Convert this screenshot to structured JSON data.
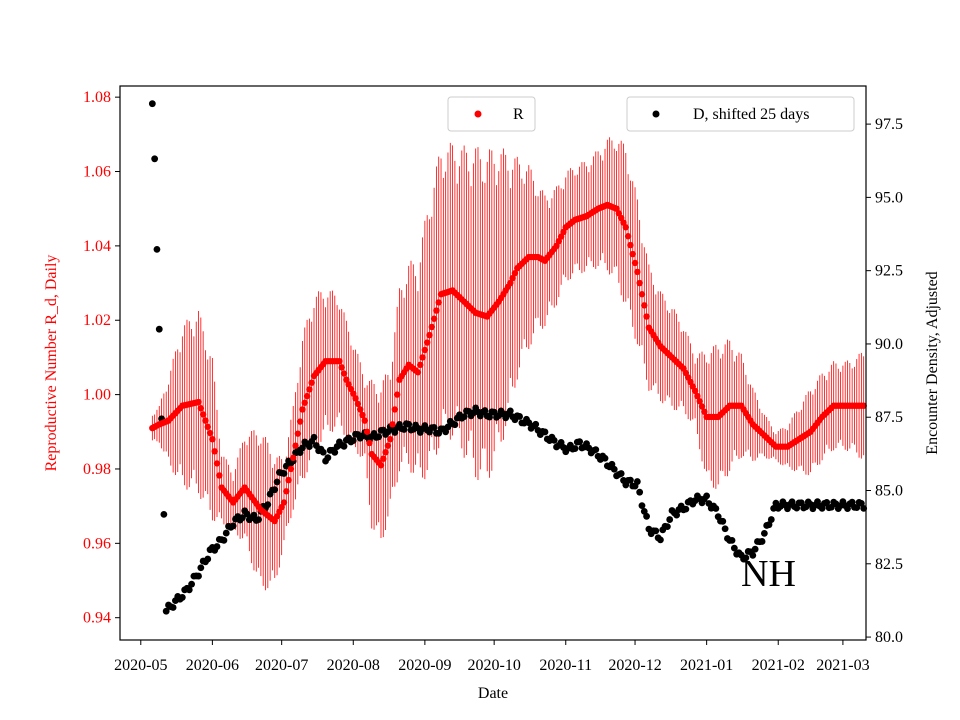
{
  "chart_data": {
    "type": "scatter",
    "title": "",
    "xlabel": "Date",
    "ylabel_left": "Reproductive Number R_d, Daily",
    "ylabel_right": "Encounter Density, Adjusted",
    "annotation": "NH",
    "x_ticks": [
      "2020-05",
      "2020-06",
      "2020-07",
      "2020-08",
      "2020-09",
      "2020-10",
      "2020-11",
      "2020-12",
      "2021-01",
      "2021-02",
      "2021-03"
    ],
    "x_range_days": [
      -9,
      314
    ],
    "ylim_left": [
      0.934,
      1.083
    ],
    "ylim_right": [
      79.9,
      98.8
    ],
    "y_ticks_left": [
      "0.94",
      "0.96",
      "0.98",
      "1.00",
      "1.02",
      "1.04",
      "1.06",
      "1.08"
    ],
    "y_ticks_right": [
      "80.0",
      "82.5",
      "85.0",
      "87.5",
      "90.0",
      "92.5",
      "95.0",
      "97.5"
    ],
    "left_color": "#ff0000",
    "right_color": "#000000",
    "legend_left": "R",
    "legend_right": "D, shifted 25 days",
    "series_R_keyframes": {
      "day_offset": [
        5,
        8,
        12,
        18,
        25,
        31,
        35,
        40,
        45,
        52,
        58,
        62,
        66,
        70,
        75,
        80,
        86,
        89,
        93,
        97,
        100,
        104,
        108,
        112,
        116,
        120,
        125,
        130,
        135,
        140,
        145,
        150,
        155,
        160,
        163,
        168,
        172,
        175,
        180,
        184,
        188,
        193,
        198,
        202,
        206,
        210,
        215,
        220,
        225,
        230,
        235,
        240,
        245,
        250,
        255,
        260,
        265,
        270,
        275,
        280,
        285,
        290,
        295,
        300,
        305,
        309,
        313
      ],
      "R": [
        0.991,
        0.992,
        0.993,
        0.997,
        0.998,
        0.988,
        0.975,
        0.971,
        0.975,
        0.969,
        0.966,
        0.971,
        0.983,
        0.996,
        1.005,
        1.009,
        1.009,
        1.004,
        0.999,
        0.993,
        0.984,
        0.981,
        0.988,
        1.004,
        1.008,
        1.006,
        1.016,
        1.027,
        1.028,
        1.025,
        1.022,
        1.021,
        1.025,
        1.03,
        1.034,
        1.037,
        1.037,
        1.036,
        1.04,
        1.045,
        1.047,
        1.048,
        1.05,
        1.051,
        1.05,
        1.045,
        1.033,
        1.018,
        1.013,
        1.01,
        1.007,
        1.001,
        0.994,
        0.994,
        0.997,
        0.997,
        0.992,
        0.989,
        0.986,
        0.986,
        0.988,
        0.99,
        0.994,
        0.997,
        0.997,
        0.997,
        0.997
      ],
      "R_err": [
        0.004,
        0.005,
        0.012,
        0.022,
        0.025,
        0.022,
        0.01,
        0.008,
        0.015,
        0.022,
        0.018,
        0.012,
        0.014,
        0.02,
        0.022,
        0.02,
        0.018,
        0.016,
        0.014,
        0.012,
        0.02,
        0.022,
        0.02,
        0.025,
        0.028,
        0.03,
        0.038,
        0.04,
        0.04,
        0.042,
        0.045,
        0.045,
        0.042,
        0.035,
        0.03,
        0.025,
        0.02,
        0.018,
        0.016,
        0.015,
        0.015,
        0.015,
        0.016,
        0.018,
        0.02,
        0.022,
        0.02,
        0.017,
        0.015,
        0.014,
        0.012,
        0.01,
        0.018,
        0.02,
        0.018,
        0.014,
        0.01,
        0.006,
        0.004,
        0.006,
        0.009,
        0.012,
        0.012,
        0.012,
        0.012,
        0.013,
        0.015
      ]
    },
    "series_D_keyframes": {
      "day_offset": [
        5,
        6,
        7,
        8,
        9,
        10,
        11,
        15,
        20,
        25,
        30,
        35,
        40,
        45,
        50,
        55,
        60,
        65,
        70,
        75,
        80,
        85,
        90,
        95,
        100,
        105,
        110,
        115,
        120,
        125,
        130,
        135,
        140,
        145,
        150,
        155,
        160,
        165,
        170,
        175,
        180,
        185,
        190,
        195,
        200,
        205,
        210,
        215,
        220,
        225,
        230,
        235,
        240,
        245,
        250,
        255,
        260,
        265,
        270,
        275,
        280,
        285,
        290,
        295,
        300,
        305,
        310,
        313
      ],
      "D": [
        98.1,
        96.4,
        93.3,
        90.4,
        87.4,
        84.3,
        80.9,
        81.2,
        81.6,
        82.2,
        82.9,
        83.3,
        83.9,
        84.2,
        84.0,
        84.6,
        85.5,
        86.0,
        86.5,
        86.7,
        86.1,
        86.5,
        86.7,
        86.9,
        86.8,
        87.0,
        87.1,
        87.2,
        87.1,
        87.1,
        87.0,
        87.3,
        87.6,
        87.7,
        87.6,
        87.6,
        87.6,
        87.4,
        87.2,
        86.9,
        86.6,
        86.4,
        86.6,
        86.4,
        86.1,
        85.7,
        85.3,
        85.2,
        83.7,
        83.4,
        84.2,
        84.4,
        84.7,
        84.7,
        84.2,
        83.3,
        82.7,
        82.9,
        83.5,
        84.5,
        84.5,
        84.5,
        84.5,
        84.5,
        84.5,
        84.5,
        84.5,
        84.5
      ]
    }
  }
}
